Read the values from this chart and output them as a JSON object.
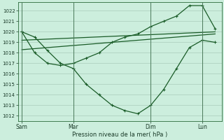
{
  "background_color": "#cceedd",
  "grid_color": "#aaccbb",
  "line_color": "#1a5c28",
  "xtick_labels": [
    "Sam",
    "Mar",
    "Dim",
    "Lun"
  ],
  "xtick_positions": [
    0,
    4,
    10,
    14
  ],
  "ylim": [
    1011.5,
    1022.8
  ],
  "yticks": [
    1012,
    1013,
    1014,
    1015,
    1016,
    1017,
    1018,
    1019,
    1020,
    1021,
    1022
  ],
  "xlabel": "Pression niveau de la mer( hPa )",
  "straight_line1_x": [
    0,
    15
  ],
  "straight_line1_y": [
    1019.2,
    1020.0
  ],
  "straight_line2_x": [
    0,
    15
  ],
  "straight_line2_y": [
    1018.3,
    1019.8
  ],
  "main_line_x": [
    0,
    1,
    2,
    3,
    4,
    5,
    6,
    7,
    8,
    9,
    10,
    11,
    12,
    13,
    14,
    15
  ],
  "main_line_y": [
    1020.0,
    1019.5,
    1018.2,
    1017.0,
    1016.5,
    1015.0,
    1014.0,
    1013.0,
    1012.5,
    1012.2,
    1013.0,
    1014.5,
    1016.5,
    1018.5,
    1019.2,
    1019.0
  ],
  "peak_line_x": [
    0,
    1,
    2,
    3,
    4,
    5,
    6,
    7,
    8,
    9,
    10,
    11,
    12,
    13,
    14,
    15
  ],
  "peak_line_y": [
    1020.0,
    1018.0,
    1017.0,
    1016.8,
    1017.0,
    1017.5,
    1018.0,
    1019.0,
    1019.5,
    1019.8,
    1020.5,
    1021.0,
    1021.5,
    1022.5,
    1022.5,
    1020.3
  ],
  "xlim": [
    -0.3,
    15.5
  ],
  "figsize": [
    3.2,
    2.0
  ],
  "dpi": 100,
  "vlines_x": [
    0,
    4,
    10,
    14
  ]
}
